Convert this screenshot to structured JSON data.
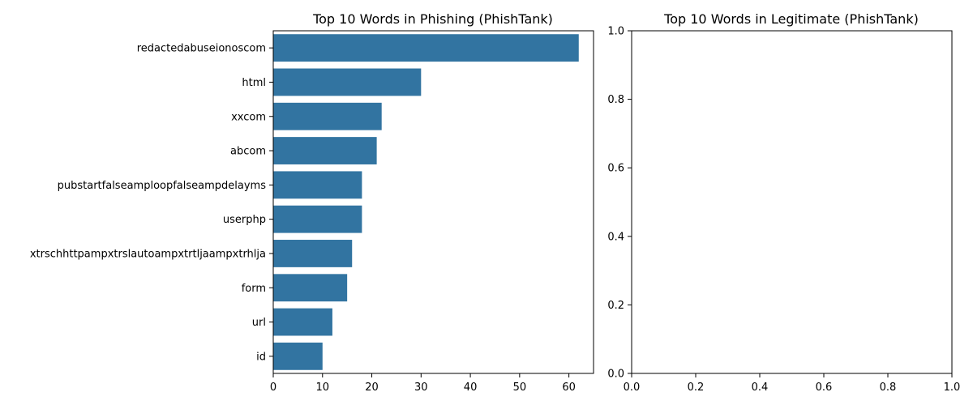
{
  "chart_data": [
    {
      "type": "bar",
      "orientation": "horizontal",
      "title": "Top 10 Words in Phishing (PhishTank)",
      "categories": [
        "redactedabuseionoscom",
        "html",
        "xxcom",
        "abcom",
        "pubstartfalseamploopfalseampdelayms",
        "userphp",
        "xtrschhttpampxtrslautoampxtrtljaampxtrhlja",
        "form",
        "url",
        "id"
      ],
      "values": [
        62,
        30,
        22,
        21,
        18,
        18,
        16,
        15,
        12,
        10
      ],
      "xlim": [
        0,
        65
      ],
      "xticks": [
        "0",
        "10",
        "20",
        "30",
        "40",
        "50",
        "60"
      ],
      "xlabel": "",
      "ylabel": "",
      "grid": false,
      "bar_color": "#3274a1"
    },
    {
      "type": "bar",
      "orientation": "horizontal",
      "title": "Top 10 Words in Legitimate (PhishTank)",
      "categories": [],
      "values": [],
      "xlim": [
        0,
        1
      ],
      "ylim": [
        0,
        1
      ],
      "xticks": [
        "0.0",
        "0.2",
        "0.4",
        "0.6",
        "0.8",
        "1.0"
      ],
      "yticks": [
        "0.0",
        "0.2",
        "0.4",
        "0.6",
        "0.8",
        "1.0"
      ],
      "xlabel": "",
      "ylabel": "",
      "grid": false
    }
  ]
}
